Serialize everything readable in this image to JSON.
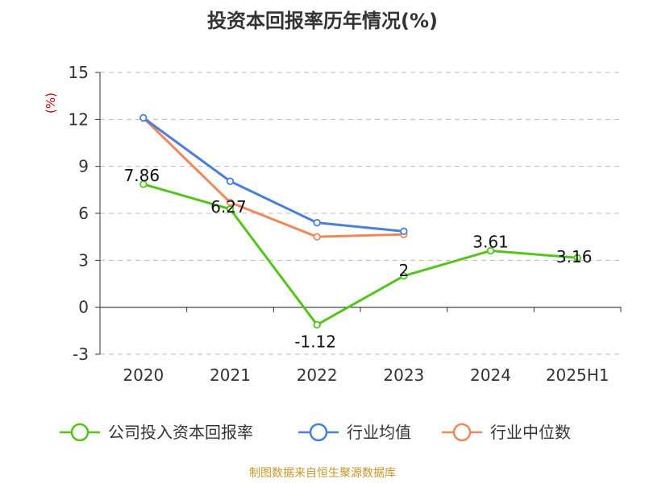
{
  "colors": {
    "company": "#52c41a",
    "industry_avg": "#4a7fdc",
    "industry_median": "#f0875a",
    "grid": "#bbbbbb",
    "axis": "#333333",
    "unit": "#cc0000",
    "source": "#c8962d"
  },
  "chart_data": {
    "type": "line",
    "title": "投资本回报率历年情况(%)",
    "ylabel": "(%)",
    "categories": [
      "2020",
      "2021",
      "2022",
      "2023",
      "2024",
      "2025H1"
    ],
    "ylim": [
      -3,
      15
    ],
    "yticks": [
      15,
      12,
      9,
      6,
      3,
      0,
      -3
    ],
    "ytick_labels": [
      "15",
      "12",
      "9",
      "6",
      "3",
      "0",
      "-3"
    ],
    "grid": true,
    "legend_position": "bottom",
    "series": [
      {
        "name": "公司投入资本回报率",
        "color_key": "company",
        "values": [
          7.86,
          6.27,
          -1.12,
          2,
          3.61,
          3.16
        ],
        "labels": [
          "7.86",
          "6.27",
          "-1.12",
          "2",
          "3.61",
          "3.16"
        ]
      },
      {
        "name": "行业均值",
        "color_key": "industry_avg",
        "values": [
          12.1,
          8.05,
          5.4,
          4.85,
          null,
          null
        ]
      },
      {
        "name": "行业中位数",
        "color_key": "industry_median",
        "values": [
          12.1,
          6.7,
          4.5,
          4.65,
          null,
          null
        ]
      }
    ]
  },
  "source_text": "制图数据来自恒生聚源数据库"
}
